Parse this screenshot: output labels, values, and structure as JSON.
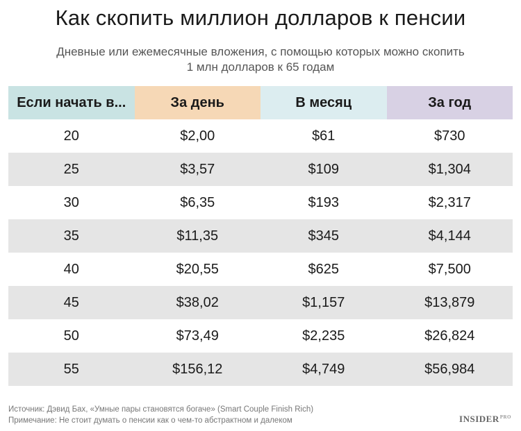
{
  "title": "Как скопить миллион долларов к пенсии",
  "subtitle_line1": "Дневные или ежемесячные вложения, с помощью которых можно скопить",
  "subtitle_line2": "1 млн долларов  к 65 годам",
  "colors": {
    "col_age": "#c9e3e3",
    "col_day": "#f6d8b6",
    "col_month": "#dcedf0",
    "col_year": "#d8d1e4",
    "row_alt": "#e5e5e5"
  },
  "chart_data": {
    "type": "table",
    "columns": [
      "Если начать в...",
      "За день",
      "В месяц",
      "За год"
    ],
    "rows": [
      [
        "20",
        "$2,00",
        "$61",
        "$730"
      ],
      [
        "25",
        "$3,57",
        "$109",
        "$1,304"
      ],
      [
        "30",
        "$6,35",
        "$193",
        "$2,317"
      ],
      [
        "35",
        "$11,35",
        "$345",
        "$4,144"
      ],
      [
        "40",
        "$20,55",
        "$625",
        "$7,500"
      ],
      [
        "45",
        "$38,02",
        "$1,157",
        "$13,879"
      ],
      [
        "50",
        "$73,49",
        "$2,235",
        "$26,824"
      ],
      [
        "55",
        "$156,12",
        "$4,749",
        "$56,984"
      ]
    ]
  },
  "footer": {
    "source": "Источник: Дэвид Бах, «Умные пары становятся богаче» (Smart Couple Finish Rich)",
    "note": "Примечание: Не стоит думать о пенсии как о чем-то абстрактном и далеком"
  },
  "brand": {
    "name": "INSIDER",
    "suffix": "PRO"
  }
}
